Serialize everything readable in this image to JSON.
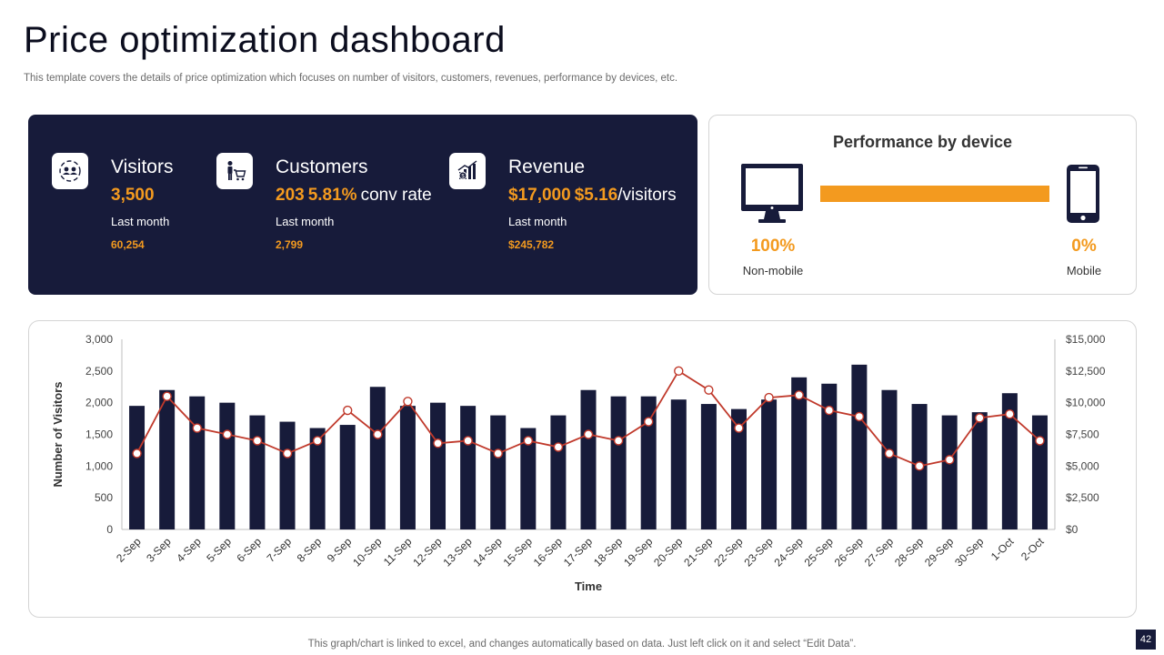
{
  "page": {
    "title": "Price optimization dashboard",
    "subtitle": "This template covers the details of price optimization which focuses on number of visitors, customers, revenues, performance by devices, etc.",
    "footnote": "This graph/chart is linked to excel, and changes automatically based on data. Just left click on it and select “Edit Data”.",
    "page_number": "42"
  },
  "kpis": {
    "visitors": {
      "label": "Visitors",
      "value": "3,500",
      "period": "Last month",
      "previous": "60,254",
      "icon": "users-exchange-icon"
    },
    "customers": {
      "label": "Customers",
      "value": "203",
      "rate": "5.81%",
      "rate_suffix": "conv rate",
      "period": "Last month",
      "previous": "2,799",
      "icon": "shopper-cart-icon"
    },
    "revenue": {
      "label": "Revenue",
      "value": "$17,000",
      "per_visitor": "$5.16",
      "per_visitor_suffix": "/visitors",
      "period": "Last month",
      "previous": "$245,782",
      "icon": "revenue-chart-icon"
    }
  },
  "device": {
    "title": "Performance by device",
    "non_mobile": {
      "percent": "100%",
      "label": "Non-mobile",
      "share": 1.0
    },
    "mobile": {
      "percent": "0%",
      "label": "Mobile",
      "share": 0.0
    }
  },
  "colors": {
    "navy": "#171b3a",
    "orange": "#f39a1f",
    "line": "#c0392b"
  },
  "chart_data": {
    "type": "bar",
    "xlabel": "Time",
    "ylabel": "Number of Visitors",
    "ylim": [
      0,
      3000
    ],
    "y2lim": [
      0,
      15000
    ],
    "y_ticks": [
      "0",
      "500",
      "1,000",
      "1,500",
      "2,000",
      "2,500",
      "3,000"
    ],
    "y2_ticks": [
      "$0",
      "$2,500",
      "$5,000",
      "$7,500",
      "$10,000",
      "$12,500",
      "$15,000"
    ],
    "categories": [
      "2-Sep",
      "3-Sep",
      "4-Sep",
      "5-Sep",
      "6-Sep",
      "7-Sep",
      "8-Sep",
      "9-Sep",
      "10-Sep",
      "11-Sep",
      "12-Sep",
      "13-Sep",
      "14-Sep",
      "15-Sep",
      "16-Sep",
      "17-Sep",
      "18-Sep",
      "19-Sep",
      "20-Sep",
      "21-Sep",
      "22-Sep",
      "23-Sep",
      "24-Sep",
      "25-Sep",
      "26-Sep",
      "27-Sep",
      "28-Sep",
      "29-Sep",
      "30-Sep",
      "1-Oct",
      "2-Oct"
    ],
    "series": [
      {
        "name": "Visitors",
        "type": "bar",
        "axis": "left",
        "values": [
          1950,
          2200,
          2100,
          2000,
          1800,
          1700,
          1600,
          1650,
          2250,
          1950,
          2000,
          1950,
          1800,
          1600,
          1800,
          2200,
          2100,
          2100,
          2050,
          1980,
          1900,
          2050,
          2400,
          2300,
          2600,
          2200,
          1980,
          1800,
          1850,
          2150,
          1800
        ]
      },
      {
        "name": "Revenue",
        "type": "line",
        "axis": "right",
        "values": [
          6000,
          10500,
          8000,
          7500,
          7000,
          6000,
          7000,
          9400,
          7500,
          10100,
          6800,
          7000,
          6000,
          7000,
          6500,
          7500,
          7000,
          8500,
          12500,
          11000,
          8000,
          10400,
          10600,
          9400,
          8900,
          6000,
          5000,
          5500,
          8800,
          9100,
          7000
        ]
      }
    ]
  }
}
